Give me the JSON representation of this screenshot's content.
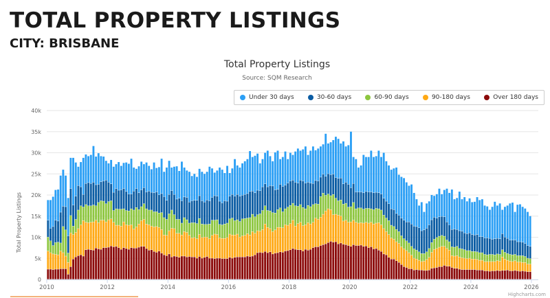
{
  "header": {
    "title": "TOTAL PROPERTY LISTINGS",
    "subtitle": "CITY: BRISBANE"
  },
  "chart_data": {
    "type": "bar",
    "stacked": true,
    "title": "Total Property Listings",
    "subtitle": "Source: SQM Research",
    "ylabel": "Total Property Listings",
    "xlabel": "",
    "ylim": [
      0,
      40000
    ],
    "yticks": [
      "0",
      "5k",
      "10k",
      "15k",
      "20k",
      "25k",
      "30k",
      "35k",
      "40k"
    ],
    "xticks": [
      "2010",
      "2012",
      "2014",
      "2016",
      "2018",
      "2020",
      "2022",
      "2024",
      "2026"
    ],
    "x_start": "2010-01",
    "x_end": "2025-12",
    "x_interval": "monthly",
    "units": "thousands",
    "grid": "horizontal",
    "legend_placement": "top-right",
    "credit": "Highcharts.com",
    "series": [
      {
        "name": "Under 30 days",
        "color": "#2b9ff5",
        "values": [
          4.8,
          6.7,
          7.1,
          7.2,
          7.5,
          8.7,
          8.7,
          7.4,
          9.0,
          7.3,
          11.2,
          8.0,
          4.5,
          5.9,
          8.7,
          6.9,
          6.3,
          6.8,
          8.6,
          6.7,
          7.4,
          6.1,
          5.8,
          4.6,
          4.5,
          5.7,
          6.1,
          5.8,
          6.7,
          5.7,
          6.1,
          6.9,
          7.2,
          8.4,
          5.6,
          4.7,
          6.3,
          6.7,
          5.6,
          7.0,
          6.0,
          5.5,
          7.2,
          5.7,
          6.6,
          8.3,
          5.9,
          7.8,
          8.0,
          5.5,
          6.6,
          7.8,
          6.5,
          9.3,
          7.0,
          6.4,
          7.2,
          5.9,
          6.3,
          5.6,
          6.4,
          6.9,
          6.7,
          6.7,
          8.1,
          6.9,
          5.5,
          6.1,
          8.0,
          7.9,
          6.6,
          8.4,
          5.5,
          6.2,
          8.8,
          6.9,
          6.8,
          7.6,
          7.9,
          8.2,
          9.6,
          8.1,
          8.8,
          8.7,
          6.5,
          6.6,
          7.4,
          8.6,
          7.0,
          5.9,
          8.9,
          9.2,
          6.0,
          7.0,
          8.0,
          5.7,
          6.7,
          6.0,
          7.3,
          8.2,
          7.0,
          7.5,
          8.7,
          6.5,
          7.7,
          8.8,
          7.2,
          7.7,
          7.3,
          7.1,
          10.1,
          7.2,
          7.7,
          8.1,
          9.7,
          9.4,
          8.2,
          10.1,
          8.5,
          9.3,
          13.3,
          6.3,
          7.8,
          5.8,
          6.3,
          9.0,
          8.2,
          8.3,
          9.8,
          8.5,
          8.6,
          10.0,
          8.8,
          10.8,
          9.5,
          9.1,
          9.3,
          9.8,
          10.9,
          9.6,
          9.8,
          10.0,
          9.4,
          8.6,
          9.4,
          7.9,
          6.5,
          5.3,
          6.8,
          4.3,
          5.9,
          5.6,
          5.9,
          5.1,
          5.7,
          6.7,
          5.3,
          6.4,
          7.9,
          7.6,
          9.5,
          7.1,
          7.5,
          9.3,
          7.6,
          8.5,
          7.7,
          8.2,
          7.7,
          7.9,
          8.9,
          8.7,
          8.9,
          7.7,
          7.5,
          6.8,
          7.7,
          8.8,
          7.8,
          8.4,
          5.7,
          7.2,
          7.8,
          8.7,
          8.9,
          6.7,
          8.8,
          8.9,
          8.4,
          8.3,
          8.0,
          7.2
        ]
      },
      {
        "name": "30-60 days",
        "color": "#0b5ca3",
        "values": [
          4.0,
          3.0,
          4.5,
          5.3,
          5.0,
          7.3,
          4.8,
          5.5,
          4.1,
          6.4,
          5.0,
          5.5,
          5.8,
          4.5,
          3.0,
          5.0,
          5.5,
          5.3,
          5.4,
          5.0,
          4.3,
          4.5,
          4.8,
          5.6,
          4.6,
          4.0,
          4.3,
          4.8,
          4.5,
          4.6,
          4.8,
          4.5,
          4.0,
          3.5,
          4.5,
          4.5,
          4.0,
          4.0,
          3.8,
          4.0,
          4.5,
          4.2,
          4.5,
          4.7,
          4.3,
          4.5,
          5.0,
          4.5,
          4.6,
          4.6,
          4.8,
          4.8,
          5.0,
          5.3,
          4.9,
          5.3,
          5.0,
          5.2,
          5.3,
          5.5,
          5.4,
          5.5,
          5.3,
          5.8,
          5.5,
          5.4,
          5.8,
          5.6,
          5.5,
          5.2,
          5.5,
          5.2,
          5.4,
          5.6,
          5.8,
          6.0,
          6.0,
          5.6,
          5.7,
          5.8,
          6.2,
          5.5,
          5.7,
          5.8,
          5.5,
          5.6,
          5.2,
          5.6,
          6.0,
          6.3,
          5.5,
          4.8,
          5.6,
          6.0,
          5.6,
          5.7,
          5.8,
          5.5,
          5.6,
          5.5,
          5.8,
          6.3,
          6.1,
          5.5,
          5.6,
          5.0,
          5.5,
          5.5,
          4.6,
          4.5,
          4.5,
          4.8,
          5.0,
          4.8,
          4.9,
          5.3,
          5.2,
          4.8,
          5.0,
          5.4,
          4.5,
          4.5,
          4.0,
          3.8,
          3.8,
          3.9,
          4.0,
          3.9,
          4.0,
          4.0,
          3.8,
          3.8,
          3.8,
          4.0,
          4.0,
          4.0,
          3.9,
          4.0,
          3.8,
          3.9,
          4.2,
          4.4,
          4.5,
          5.0,
          5.3,
          5.4,
          5.6,
          5.7,
          5.4,
          5.6,
          5.6,
          5.6,
          5.4,
          5.2,
          4.6,
          4.6,
          4.5,
          4.6,
          4.3,
          4.0,
          4.1,
          4.3,
          4.0,
          4.2,
          4.2,
          4.0,
          4.0,
          4.2,
          4.0,
          3.9,
          4.1,
          3.8,
          3.8,
          3.9,
          4.0,
          3.8,
          3.6,
          3.8,
          3.7,
          3.7,
          3.8,
          3.6,
          3.6,
          3.4,
          3.5,
          3.4,
          3.3,
          3.3,
          3.2,
          3.1,
          3.0,
          2.9
        ]
      },
      {
        "name": "60-90 days",
        "color": "#8dc63f",
        "values": [
          3.3,
          2.8,
          2.0,
          2.8,
          3.0,
          1.9,
          6.2,
          6.2,
          2.2,
          4.1,
          2.0,
          3.1,
          4.4,
          4.5,
          3.2,
          4.2,
          4.0,
          3.9,
          4.0,
          3.4,
          4.8,
          4.6,
          4.5,
          4.3,
          4.3,
          4.3,
          2.8,
          3.9,
          3.8,
          4.0,
          3.1,
          3.4,
          3.4,
          3.8,
          4.5,
          4.6,
          3.4,
          3.3,
          3.7,
          3.6,
          3.5,
          3.8,
          3.6,
          3.5,
          3.4,
          4.0,
          4.1,
          3.8,
          4.0,
          4.3,
          3.3,
          3.3,
          3.3,
          2.8,
          3.3,
          3.0,
          2.9,
          3.6,
          3.5,
          3.6,
          3.8,
          3.2,
          3.0,
          3.0,
          3.5,
          3.6,
          3.3,
          3.5,
          3.2,
          3.2,
          3.4,
          3.4,
          3.6,
          4.0,
          3.4,
          3.4,
          3.7,
          4.0,
          4.0,
          3.7,
          4.1,
          4.1,
          3.9,
          3.8,
          4.1,
          4.5,
          4.3,
          4.0,
          4.2,
          4.5,
          4.0,
          4.2,
          4.6,
          3.8,
          3.8,
          4.3,
          4.3,
          4.0,
          4.8,
          4.1,
          4.2,
          4.3,
          3.8,
          4.1,
          4.1,
          4.2,
          3.4,
          3.6,
          4.9,
          5.0,
          3.7,
          3.5,
          3.3,
          4.8,
          3.8,
          3.4,
          3.8,
          4.0,
          4.0,
          3.6,
          3.6,
          4.2,
          3.2,
          3.6,
          3.5,
          3.3,
          3.3,
          3.5,
          3.2,
          3.4,
          3.5,
          3.3,
          3.5,
          3.2,
          3.2,
          3.3,
          3.0,
          3.0,
          2.9,
          2.8,
          2.6,
          2.4,
          2.3,
          2.3,
          2.1,
          2.2,
          2.1,
          2.0,
          1.9,
          1.8,
          1.8,
          2.1,
          2.3,
          2.4,
          2.6,
          2.6,
          2.6,
          2.4,
          2.0,
          2.0,
          2.1,
          2.1,
          2.2,
          2.0,
          2.1,
          2.0,
          1.9,
          1.8,
          1.8,
          1.8,
          1.8,
          1.8,
          1.8,
          1.7,
          1.6,
          1.7,
          1.7,
          1.6,
          1.6,
          1.6,
          1.7,
          1.6,
          1.6,
          1.6,
          1.6,
          1.5,
          1.5,
          1.5,
          1.6,
          1.4,
          1.4,
          1.3
        ]
      },
      {
        "name": "90-180 days",
        "color": "#ffa915",
        "values": [
          4.3,
          3.9,
          3.7,
          3.5,
          3.4,
          4.2,
          3.8,
          3.0,
          2.8,
          8.0,
          5.8,
          5.8,
          6.4,
          7.1,
          8.4,
          6.5,
          6.3,
          6.5,
          6.7,
          6.6,
          6.2,
          6.9,
          6.5,
          6.1,
          6.5,
          6.4,
          5.8,
          5.0,
          5.3,
          5.5,
          6.1,
          5.6,
          5.7,
          5.4,
          4.5,
          5.0,
          5.5,
          6.1,
          6.4,
          5.8,
          6.0,
          5.6,
          5.8,
          6.1,
          5.6,
          5.6,
          4.7,
          4.8,
          5.5,
          6.8,
          6.5,
          5.5,
          5.7,
          5.0,
          5.8,
          5.8,
          5.0,
          4.5,
          4.6,
          4.6,
          5.2,
          4.9,
          4.8,
          4.6,
          4.6,
          5.4,
          5.8,
          5.6,
          4.8,
          4.8,
          4.8,
          5.0,
          5.5,
          5.5,
          5.3,
          5.4,
          4.7,
          5.0,
          5.1,
          5.3,
          5.1,
          5.8,
          5.1,
          5.2,
          5.0,
          5.5,
          6.5,
          6.0,
          5.5,
          5.3,
          5.5,
          6.0,
          5.8,
          5.8,
          6.2,
          6.0,
          6.2,
          6.7,
          5.5,
          6.2,
          6.5,
          6.0,
          5.8,
          6.5,
          6.0,
          6.0,
          6.8,
          6.5,
          6.7,
          7.2,
          7.8,
          8.0,
          7.5,
          6.5,
          6.5,
          6.8,
          6.4,
          5.5,
          5.8,
          5.5,
          5.8,
          5.8,
          5.5,
          5.3,
          5.3,
          5.5,
          5.6,
          5.8,
          5.8,
          5.9,
          6.0,
          6.5,
          6.3,
          6.0,
          5.5,
          5.4,
          5.0,
          4.7,
          4.5,
          4.5,
          4.2,
          4.2,
          4.0,
          3.8,
          3.2,
          2.8,
          2.5,
          2.3,
          2.0,
          2.2,
          2.6,
          3.0,
          3.8,
          4.4,
          4.5,
          4.6,
          4.8,
          4.5,
          4.2,
          3.8,
          2.8,
          2.9,
          3.0,
          2.9,
          2.8,
          2.7,
          2.6,
          2.7,
          2.5,
          2.5,
          2.5,
          2.3,
          2.3,
          2.2,
          2.2,
          2.3,
          2.2,
          2.2,
          2.3,
          2.3,
          3.2,
          2.7,
          2.3,
          2.3,
          2.2,
          2.3,
          2.1,
          2.2,
          2.0,
          2.1,
          1.8,
          1.8
        ]
      },
      {
        "name": "Over 180 days",
        "color": "#8b0a0a",
        "values": [
          2.4,
          2.4,
          2.3,
          2.4,
          2.4,
          2.5,
          2.5,
          2.5,
          1.2,
          3.0,
          4.8,
          5.3,
          5.6,
          5.8,
          5.5,
          7.0,
          7.1,
          7.0,
          6.9,
          7.4,
          7.2,
          7.1,
          7.5,
          7.5,
          7.6,
          7.9,
          7.7,
          7.8,
          7.5,
          7.1,
          7.5,
          7.3,
          7.1,
          7.5,
          7.4,
          7.4,
          7.6,
          7.8,
          7.8,
          7.3,
          6.9,
          7.0,
          6.6,
          6.4,
          6.7,
          6.2,
          5.8,
          5.6,
          6.0,
          5.3,
          5.5,
          5.4,
          5.2,
          5.5,
          5.5,
          5.3,
          5.4,
          5.3,
          5.3,
          5.0,
          5.4,
          5.0,
          5.2,
          5.4,
          5.0,
          5.0,
          4.9,
          5.0,
          5.0,
          4.9,
          4.9,
          4.9,
          5.2,
          5.0,
          5.2,
          5.3,
          5.3,
          5.3,
          5.3,
          5.5,
          5.4,
          5.5,
          5.8,
          6.3,
          6.4,
          6.3,
          6.6,
          6.3,
          6.5,
          6.0,
          6.2,
          6.3,
          6.5,
          6.4,
          6.7,
          6.8,
          7.0,
          7.3,
          7.1,
          7.0,
          7.0,
          6.7,
          7.1,
          6.9,
          7.1,
          7.5,
          7.7,
          7.7,
          8.0,
          8.2,
          8.4,
          8.7,
          9.0,
          8.8,
          8.9,
          8.4,
          8.6,
          8.3,
          8.2,
          8.0,
          7.8,
          8.2,
          8.0,
          8.0,
          8.1,
          7.8,
          7.9,
          7.5,
          7.7,
          7.2,
          7.3,
          6.9,
          6.6,
          6.0,
          5.8,
          5.2,
          4.8,
          4.8,
          4.4,
          4.0,
          3.5,
          3.0,
          2.8,
          2.5,
          2.5,
          2.2,
          2.3,
          2.2,
          2.2,
          2.1,
          2.1,
          2.2,
          2.6,
          2.7,
          2.8,
          3.0,
          3.0,
          3.3,
          3.1,
          3.1,
          2.8,
          2.6,
          2.6,
          2.4,
          2.3,
          2.3,
          2.3,
          2.3,
          2.3,
          2.3,
          2.2,
          2.2,
          2.2,
          2.0,
          2.0,
          1.9,
          2.0,
          2.0,
          2.1,
          2.0,
          2.1,
          2.1,
          2.2,
          2.0,
          2.0,
          2.1,
          2.0,
          1.9,
          2.0,
          1.9,
          1.8,
          1.8
        ]
      }
    ]
  }
}
